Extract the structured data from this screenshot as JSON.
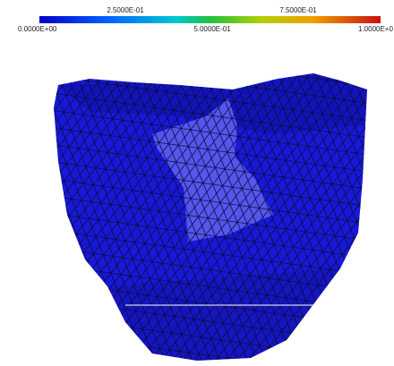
{
  "colorbar": {
    "top_labels": [
      "2.5000E-01",
      "7.5000E-01"
    ],
    "bottom_labels": [
      "0.0000E+00",
      "5.0000E-01",
      "1.0000E+0"
    ]
  }
}
